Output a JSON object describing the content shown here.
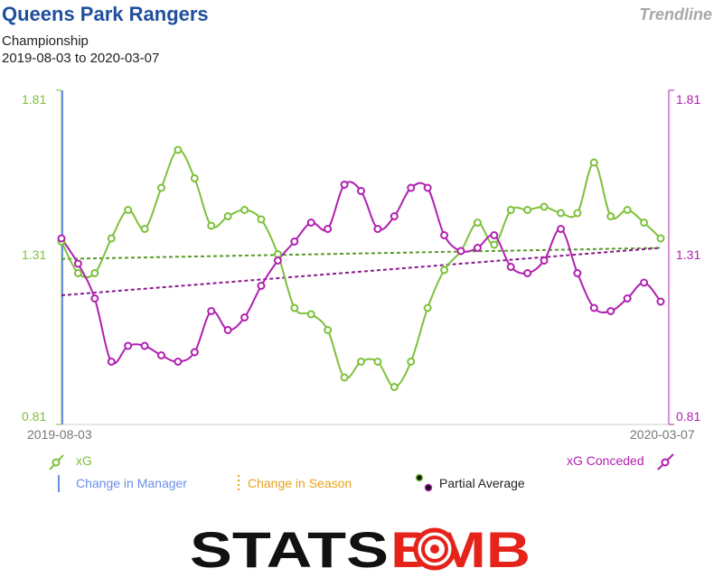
{
  "header": {
    "title": "Queens Park Rangers",
    "badge": "Trendline",
    "competition": "Championship",
    "date_range": "2019-08-03 to 2020-03-07"
  },
  "logo": {
    "text_left": "STATS",
    "text_right": "BMB",
    "brand_colors": {
      "dark": "#111111",
      "accent": "#e5231b"
    }
  },
  "colors": {
    "xg": "#7dc13a",
    "xg_trend": "#5a9a2a",
    "conceded": "#b020b0",
    "conceded_trend": "#8a1a8a",
    "manager": "#6a8ee8",
    "season": "#e8a21a",
    "axis_text": "#777777"
  },
  "chart_data": {
    "type": "line",
    "y_left_ticks": [
      "0.81",
      "1.31",
      "1.81"
    ],
    "y_right_ticks": [
      "0.81",
      "1.31",
      "1.81"
    ],
    "ylim": [
      0.81,
      1.81
    ],
    "x_start_label": "2019-08-03",
    "x_end_label": "2020-03-07",
    "series": [
      {
        "name": "xG",
        "values": [
          1.36,
          1.26,
          1.26,
          1.37,
          1.46,
          1.4,
          1.53,
          1.65,
          1.56,
          1.41,
          1.44,
          1.46,
          1.43,
          1.32,
          1.15,
          1.13,
          1.08,
          0.93,
          0.98,
          0.98,
          0.9,
          0.98,
          1.15,
          1.27,
          1.33,
          1.42,
          1.35,
          1.46,
          1.46,
          1.47,
          1.45,
          1.45,
          1.61,
          1.44,
          1.46,
          1.42,
          1.37
        ]
      },
      {
        "name": "xG Conceded",
        "values": [
          1.37,
          1.29,
          1.18,
          0.98,
          1.03,
          1.03,
          1.0,
          0.98,
          1.01,
          1.14,
          1.08,
          1.12,
          1.22,
          1.3,
          1.36,
          1.42,
          1.4,
          1.54,
          1.52,
          1.4,
          1.44,
          1.53,
          1.53,
          1.38,
          1.33,
          1.34,
          1.38,
          1.28,
          1.26,
          1.3,
          1.4,
          1.26,
          1.15,
          1.14,
          1.18,
          1.23,
          1.17
        ]
      }
    ],
    "trendlines": [
      {
        "series": "xG",
        "start": 1.305,
        "end": 1.34
      },
      {
        "series": "xG Conceded",
        "start": 1.19,
        "end": 1.34
      }
    ],
    "legend": {
      "xg": "xG",
      "conceded": "xG Conceded",
      "manager": "Change in Manager",
      "season": "Change in Season",
      "partial": "Partial Average"
    },
    "manager_change_index": 0,
    "grid": false
  }
}
